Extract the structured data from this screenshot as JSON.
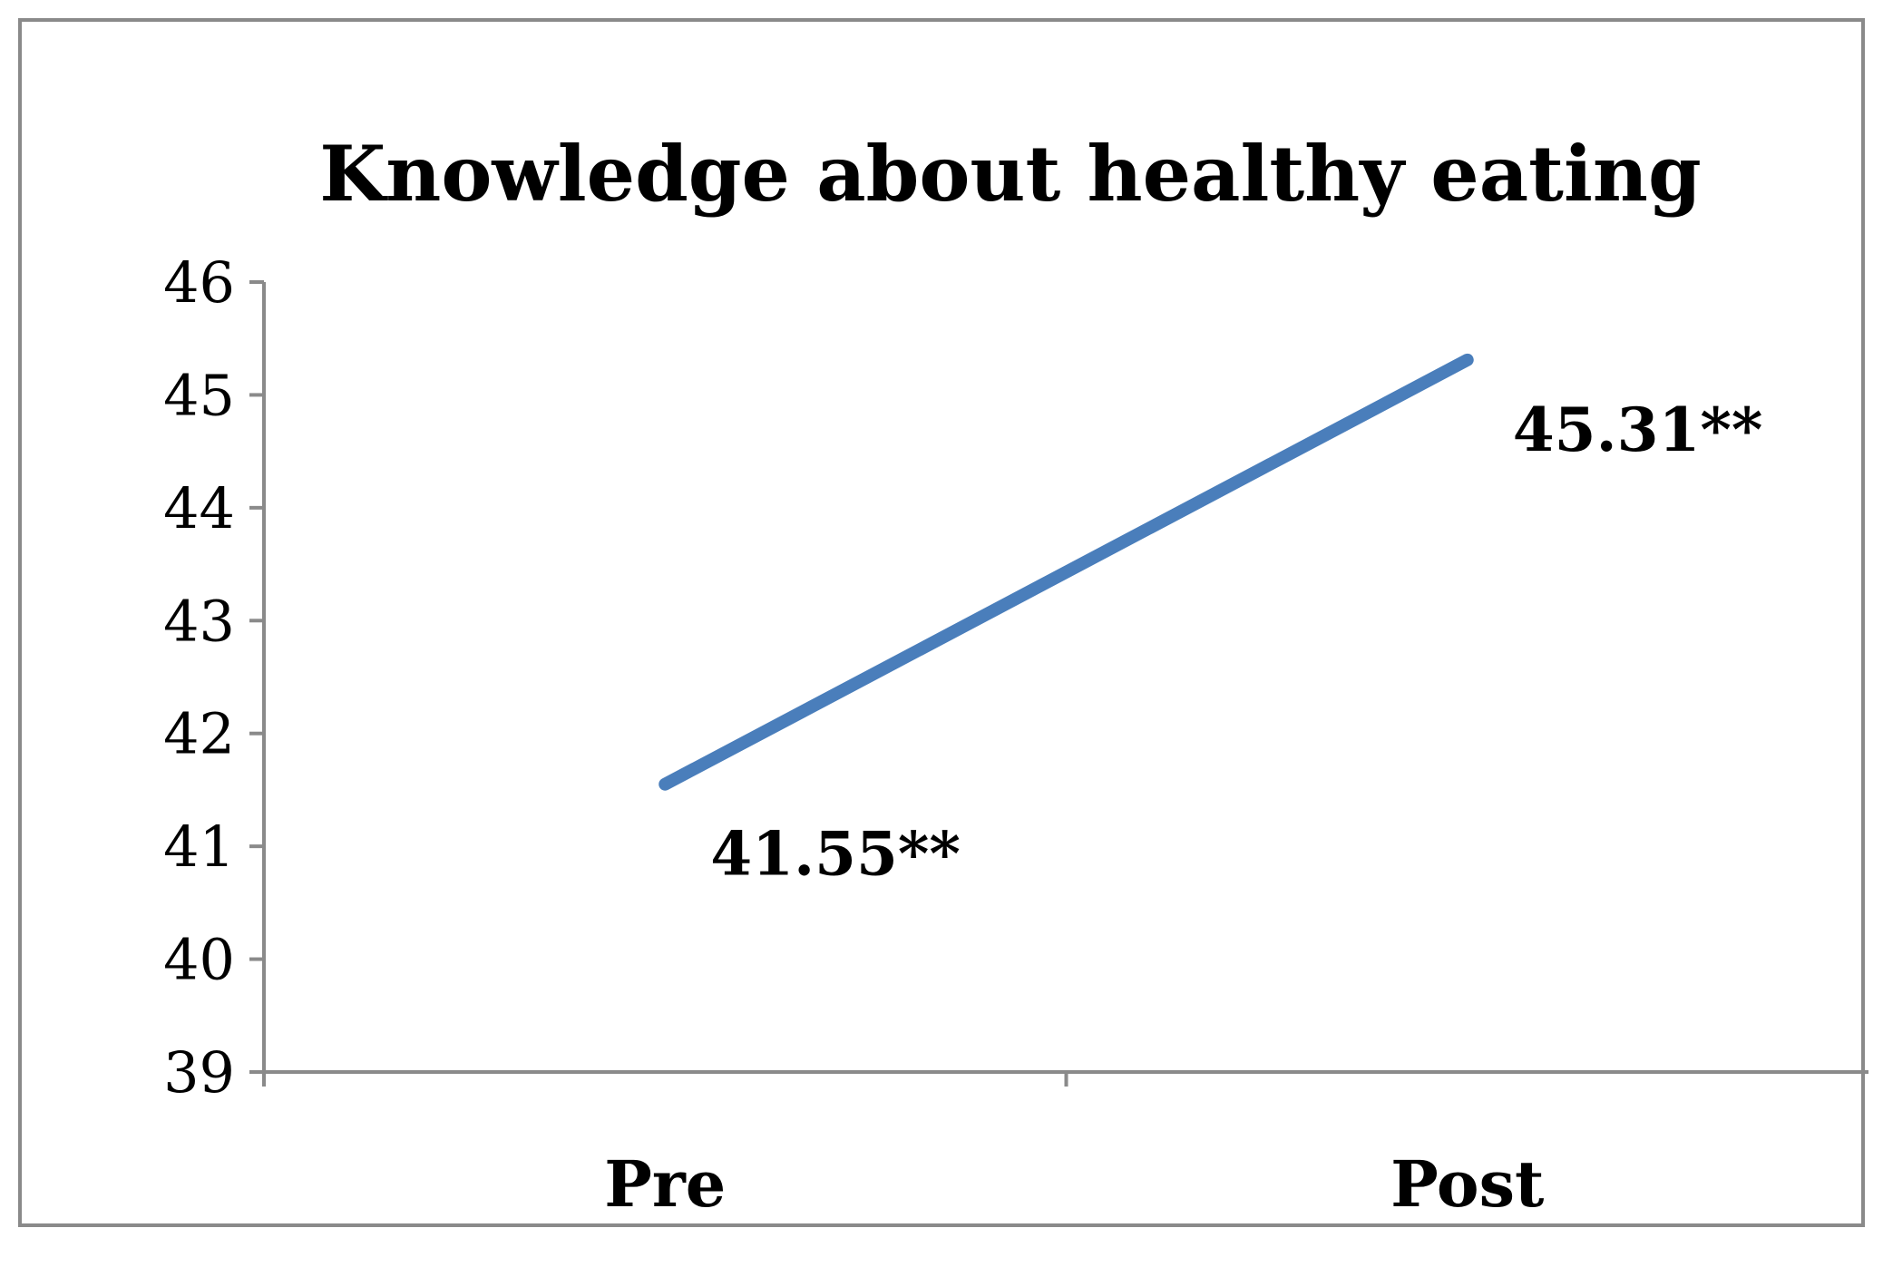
{
  "chart_data": {
    "type": "line",
    "title": "Knowledge about healthy eating",
    "categories": [
      "Pre",
      "Post"
    ],
    "series": [
      {
        "values": [
          41.55,
          45.31
        ],
        "data_labels": [
          "41.55**",
          "45.31**"
        ]
      }
    ],
    "ylim": [
      39,
      46
    ],
    "yticks": [
      "39",
      "40",
      "41",
      "42",
      "43",
      "44",
      "45",
      "46"
    ],
    "grid": false,
    "legend": "none",
    "colors": {
      "line": "#4a7ebb",
      "axis": "#8a8a8a",
      "frame": "#8a8a8a",
      "text": "#000000"
    }
  }
}
